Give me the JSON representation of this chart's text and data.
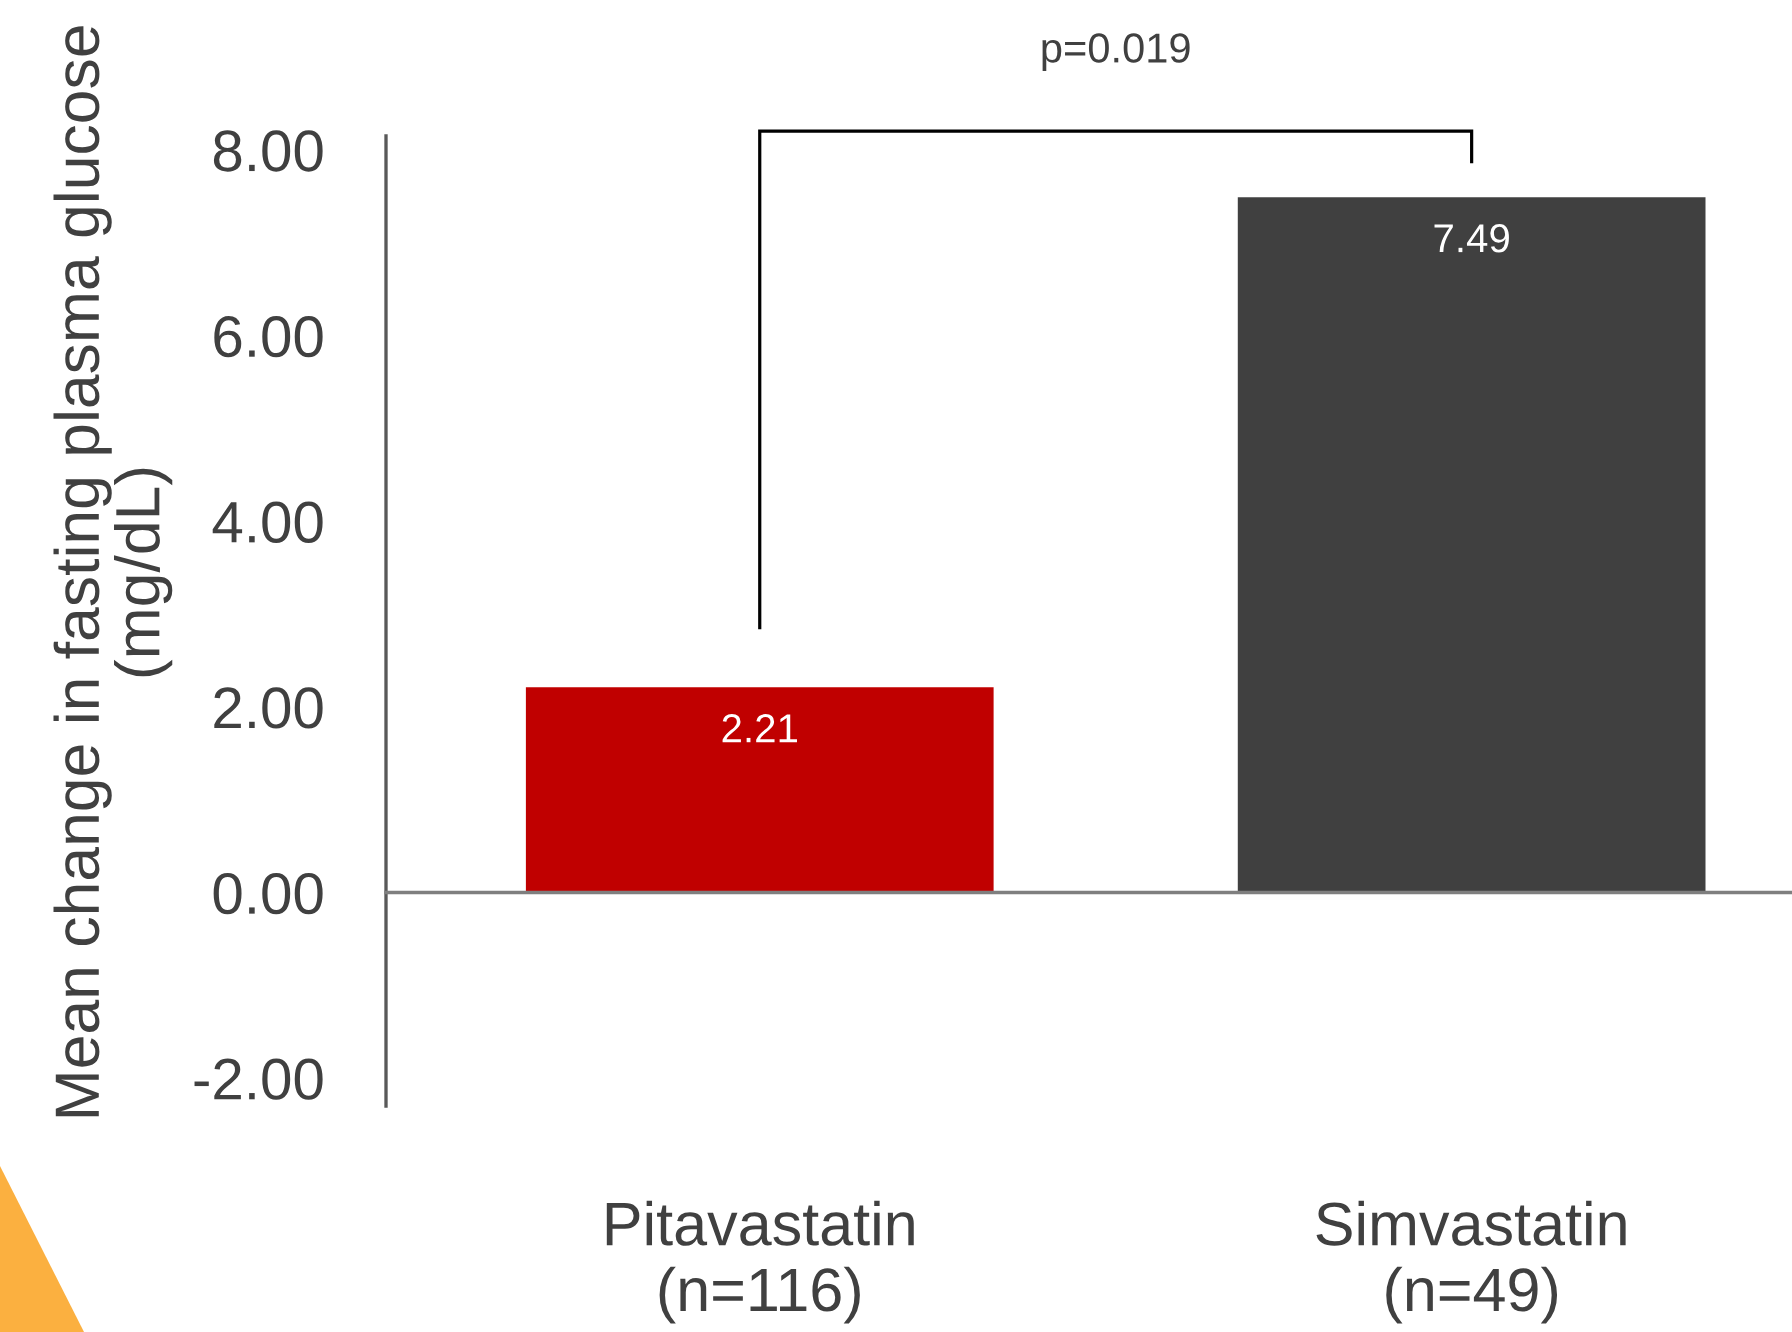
{
  "chart_data": {
    "type": "bar",
    "categories": [
      "Pitavastatin\n(n=116)",
      "Simvastatin\n(n=49)"
    ],
    "values": [
      2.21,
      7.49
    ],
    "colors": [
      "#c00000",
      "#404040"
    ],
    "ylabel": "Mean change in fasting plasma glucose\n(mg/dL)",
    "ylim": [
      -2.3,
      8.15
    ],
    "yticks": [
      {
        "value": -2,
        "label": "-2.00"
      },
      {
        "value": 0,
        "label": "0.00"
      },
      {
        "value": 2,
        "label": "2.00"
      },
      {
        "value": 4,
        "label": "4.00"
      },
      {
        "value": 6,
        "label": "6.00"
      },
      {
        "value": 8,
        "label": "8.00"
      }
    ],
    "data_labels": true,
    "annotations": [
      "p=0.019"
    ]
  }
}
